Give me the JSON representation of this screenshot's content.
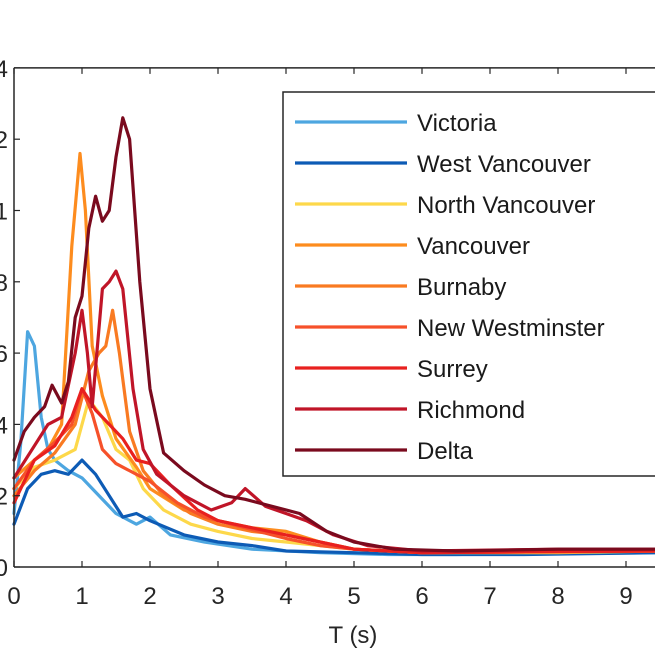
{
  "chart_data": {
    "type": "line",
    "title": "",
    "xlabel": "T (s)",
    "ylabel": "",
    "xlim": [
      0,
      9.5
    ],
    "ylim": [
      0,
      1.4
    ],
    "grid": false,
    "legend_position": "upper right (inside)",
    "x_ticks": [
      0,
      1,
      2,
      3,
      4,
      5,
      6,
      7,
      8,
      9
    ],
    "x_tick_labels": [
      "0",
      "1",
      "2",
      "3",
      "4",
      "5",
      "6",
      "7",
      "8",
      "9"
    ],
    "y_ticks": [
      0,
      0.2,
      0.4,
      0.6,
      0.8,
      1.0,
      1.2,
      1.4
    ],
    "y_tick_labels_visible": [
      "0",
      "2",
      "4",
      "6",
      "8",
      "1",
      "2",
      "4"
    ],
    "series": [
      {
        "name": "Victoria",
        "color": "#4da6e0",
        "points": [
          [
            0,
            0.15
          ],
          [
            0.1,
            0.35
          ],
          [
            0.2,
            0.66
          ],
          [
            0.3,
            0.62
          ],
          [
            0.4,
            0.42
          ],
          [
            0.5,
            0.33
          ],
          [
            0.6,
            0.3
          ],
          [
            0.8,
            0.27
          ],
          [
            1.0,
            0.25
          ],
          [
            1.2,
            0.21
          ],
          [
            1.5,
            0.15
          ],
          [
            1.8,
            0.12
          ],
          [
            2.0,
            0.14
          ],
          [
            2.3,
            0.09
          ],
          [
            2.8,
            0.07
          ],
          [
            3.5,
            0.05
          ],
          [
            4.5,
            0.04
          ],
          [
            5.5,
            0.035
          ],
          [
            6.5,
            0.035
          ],
          [
            8,
            0.04
          ],
          [
            9.5,
            0.04
          ]
        ]
      },
      {
        "name": "West Vancouver",
        "color": "#0d5bb5",
        "points": [
          [
            0,
            0.12
          ],
          [
            0.2,
            0.22
          ],
          [
            0.4,
            0.26
          ],
          [
            0.6,
            0.27
          ],
          [
            0.8,
            0.26
          ],
          [
            1.0,
            0.3
          ],
          [
            1.2,
            0.26
          ],
          [
            1.4,
            0.2
          ],
          [
            1.6,
            0.14
          ],
          [
            1.8,
            0.15
          ],
          [
            2.0,
            0.13
          ],
          [
            2.5,
            0.09
          ],
          [
            3.0,
            0.07
          ],
          [
            3.5,
            0.06
          ],
          [
            4.0,
            0.045
          ],
          [
            5.0,
            0.04
          ],
          [
            6.0,
            0.035
          ],
          [
            7.5,
            0.035
          ],
          [
            9.5,
            0.04
          ]
        ]
      },
      {
        "name": "North Vancouver",
        "color": "#fdd84a",
        "points": [
          [
            0,
            0.22
          ],
          [
            0.3,
            0.28
          ],
          [
            0.6,
            0.3
          ],
          [
            0.9,
            0.33
          ],
          [
            1.1,
            0.47
          ],
          [
            1.3,
            0.42
          ],
          [
            1.5,
            0.33
          ],
          [
            1.7,
            0.3
          ],
          [
            1.9,
            0.22
          ],
          [
            2.2,
            0.16
          ],
          [
            2.6,
            0.12
          ],
          [
            3.0,
            0.1
          ],
          [
            3.5,
            0.08
          ],
          [
            4.0,
            0.07
          ],
          [
            5.0,
            0.05
          ],
          [
            6.0,
            0.04
          ],
          [
            8.0,
            0.04
          ],
          [
            9.5,
            0.045
          ]
        ]
      },
      {
        "name": "Vancouver",
        "color": "#fd8c1e",
        "points": [
          [
            0,
            0.25
          ],
          [
            0.3,
            0.3
          ],
          [
            0.5,
            0.33
          ],
          [
            0.7,
            0.4
          ],
          [
            0.85,
            0.9
          ],
          [
            0.97,
            1.16
          ],
          [
            1.05,
            1.0
          ],
          [
            1.15,
            0.62
          ],
          [
            1.3,
            0.48
          ],
          [
            1.5,
            0.36
          ],
          [
            1.8,
            0.28
          ],
          [
            2.0,
            0.22
          ],
          [
            2.5,
            0.16
          ],
          [
            3.0,
            0.13
          ],
          [
            3.5,
            0.11
          ],
          [
            4.0,
            0.1
          ],
          [
            4.5,
            0.07
          ],
          [
            5.0,
            0.05
          ],
          [
            6.0,
            0.04
          ],
          [
            8.0,
            0.045
          ],
          [
            9.5,
            0.045
          ]
        ]
      },
      {
        "name": "Burnaby",
        "color": "#f97a22",
        "points": [
          [
            0,
            0.2
          ],
          [
            0.3,
            0.27
          ],
          [
            0.6,
            0.32
          ],
          [
            0.9,
            0.4
          ],
          [
            1.1,
            0.55
          ],
          [
            1.25,
            0.6
          ],
          [
            1.35,
            0.62
          ],
          [
            1.45,
            0.72
          ],
          [
            1.55,
            0.6
          ],
          [
            1.7,
            0.38
          ],
          [
            1.9,
            0.27
          ],
          [
            2.2,
            0.2
          ],
          [
            2.6,
            0.15
          ],
          [
            3.0,
            0.12
          ],
          [
            3.5,
            0.1
          ],
          [
            4.0,
            0.09
          ],
          [
            4.5,
            0.07
          ],
          [
            5.0,
            0.05
          ],
          [
            6.0,
            0.04
          ],
          [
            9.5,
            0.045
          ]
        ]
      },
      {
        "name": "New Westminster",
        "color": "#f6512a",
        "points": [
          [
            0,
            0.22
          ],
          [
            0.3,
            0.3
          ],
          [
            0.6,
            0.35
          ],
          [
            0.85,
            0.4
          ],
          [
            1.0,
            0.5
          ],
          [
            1.15,
            0.43
          ],
          [
            1.3,
            0.33
          ],
          [
            1.5,
            0.29
          ],
          [
            1.8,
            0.26
          ],
          [
            2.0,
            0.24
          ],
          [
            2.4,
            0.18
          ],
          [
            2.8,
            0.14
          ],
          [
            3.2,
            0.12
          ],
          [
            3.6,
            0.1
          ],
          [
            4.0,
            0.08
          ],
          [
            4.5,
            0.06
          ],
          [
            5.0,
            0.05
          ],
          [
            6.0,
            0.04
          ],
          [
            9.5,
            0.045
          ]
        ]
      },
      {
        "name": "Surrey",
        "color": "#e8201f",
        "points": [
          [
            0,
            0.18
          ],
          [
            0.3,
            0.3
          ],
          [
            0.6,
            0.34
          ],
          [
            0.85,
            0.42
          ],
          [
            1.0,
            0.5
          ],
          [
            1.2,
            0.44
          ],
          [
            1.4,
            0.4
          ],
          [
            1.6,
            0.36
          ],
          [
            1.8,
            0.3
          ],
          [
            2.0,
            0.29
          ],
          [
            2.3,
            0.23
          ],
          [
            2.7,
            0.16
          ],
          [
            3.0,
            0.13
          ],
          [
            3.5,
            0.11
          ],
          [
            4.0,
            0.09
          ],
          [
            4.5,
            0.07
          ],
          [
            5.0,
            0.05
          ],
          [
            6.0,
            0.04
          ],
          [
            9.5,
            0.045
          ]
        ]
      },
      {
        "name": "Richmond",
        "color": "#c01528",
        "points": [
          [
            0,
            0.25
          ],
          [
            0.3,
            0.34
          ],
          [
            0.5,
            0.4
          ],
          [
            0.7,
            0.42
          ],
          [
            0.9,
            0.6
          ],
          [
            1.0,
            0.72
          ],
          [
            1.08,
            0.6
          ],
          [
            1.15,
            0.45
          ],
          [
            1.3,
            0.78
          ],
          [
            1.4,
            0.8
          ],
          [
            1.5,
            0.83
          ],
          [
            1.6,
            0.78
          ],
          [
            1.75,
            0.5
          ],
          [
            1.9,
            0.33
          ],
          [
            2.1,
            0.26
          ],
          [
            2.5,
            0.2
          ],
          [
            2.9,
            0.16
          ],
          [
            3.2,
            0.18
          ],
          [
            3.4,
            0.22
          ],
          [
            3.7,
            0.17
          ],
          [
            4.0,
            0.15
          ],
          [
            4.3,
            0.13
          ],
          [
            4.7,
            0.09
          ],
          [
            5.2,
            0.06
          ],
          [
            6.0,
            0.045
          ],
          [
            8.0,
            0.05
          ],
          [
            9.5,
            0.05
          ]
        ]
      },
      {
        "name": "Delta",
        "color": "#7a0a1e",
        "points": [
          [
            0,
            0.3
          ],
          [
            0.15,
            0.38
          ],
          [
            0.3,
            0.42
          ],
          [
            0.45,
            0.45
          ],
          [
            0.56,
            0.51
          ],
          [
            0.7,
            0.46
          ],
          [
            0.8,
            0.52
          ],
          [
            0.9,
            0.7
          ],
          [
            1.0,
            0.76
          ],
          [
            1.1,
            0.95
          ],
          [
            1.2,
            1.04
          ],
          [
            1.3,
            0.97
          ],
          [
            1.4,
            1.0
          ],
          [
            1.5,
            1.15
          ],
          [
            1.6,
            1.26
          ],
          [
            1.7,
            1.2
          ],
          [
            1.85,
            0.8
          ],
          [
            2.0,
            0.5
          ],
          [
            2.2,
            0.32
          ],
          [
            2.5,
            0.27
          ],
          [
            2.8,
            0.23
          ],
          [
            3.1,
            0.2
          ],
          [
            3.4,
            0.19
          ],
          [
            3.8,
            0.17
          ],
          [
            4.2,
            0.15
          ],
          [
            4.6,
            0.1
          ],
          [
            5.0,
            0.07
          ],
          [
            5.6,
            0.05
          ],
          [
            6.5,
            0.045
          ],
          [
            8.0,
            0.05
          ],
          [
            9.5,
            0.05
          ]
        ]
      }
    ]
  },
  "legend": {
    "items": [
      {
        "label": "Victoria",
        "color": "#4da6e0"
      },
      {
        "label": "West Vancouver",
        "color": "#0d5bb5"
      },
      {
        "label": "North Vancouver",
        "color": "#fdd84a"
      },
      {
        "label": "Vancouver",
        "color": "#fd8c1e"
      },
      {
        "label": "Burnaby",
        "color": "#f97a22"
      },
      {
        "label": "New Westminster",
        "color": "#f6512a"
      },
      {
        "label": "Surrey",
        "color": "#e8201f"
      },
      {
        "label": "Richmond",
        "color": "#c01528"
      },
      {
        "label": "Delta",
        "color": "#7a0a1e"
      }
    ]
  }
}
